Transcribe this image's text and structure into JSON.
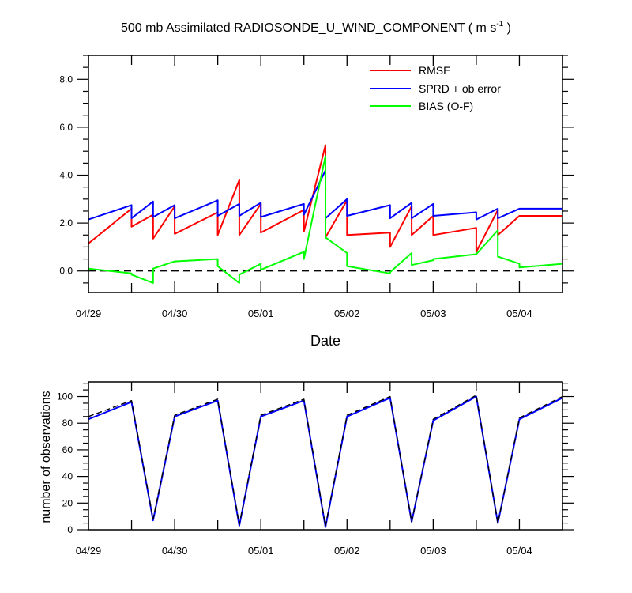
{
  "chart_data": [
    {
      "type": "line",
      "title_main": "500 mb Assimilated RADIOSONDE_U_WIND_COMPONENT ( m s",
      "title_sup": "-1",
      "title_end": " )",
      "xlabel": "Date",
      "ylabel": "",
      "x_unit": "days since 04/29 00Z",
      "xlim": [
        0,
        5.5
      ],
      "ylim": [
        -0.9,
        9.0
      ],
      "grid": false,
      "legend_position": "top-right",
      "y_ticks": [
        0,
        2,
        4,
        6,
        8
      ],
      "y_tick_labels": [
        "0.0",
        "2.0",
        "4.0",
        "6.0",
        "8.0"
      ],
      "x_ticks": [
        0,
        1,
        2,
        3,
        4,
        5
      ],
      "x_tick_labels": [
        "04/29",
        "04/30",
        "05/01",
        "05/02",
        "05/03",
        "05/04"
      ],
      "reference_line": {
        "name": "zero-line",
        "value": 0
      },
      "series": [
        {
          "name": "RMSE",
          "color": "#ff0000",
          "x": [
            0,
            0.5,
            0.5,
            0.75,
            0.75,
            1.0,
            1.0,
            1.5,
            1.5,
            1.75,
            1.75,
            2.0,
            2.0,
            2.5,
            2.5,
            2.75,
            2.75,
            3.0,
            3.0,
            3.5,
            3.5,
            3.75,
            3.75,
            4.0,
            4.0,
            4.5,
            4.5,
            4.75,
            4.75,
            5.0,
            5.0,
            5.5
          ],
          "y": [
            1.15,
            2.6,
            1.85,
            2.35,
            1.35,
            2.7,
            1.55,
            2.45,
            1.5,
            3.8,
            1.5,
            2.8,
            1.6,
            2.55,
            1.65,
            5.25,
            1.4,
            2.95,
            1.5,
            1.6,
            1.0,
            2.7,
            1.5,
            2.3,
            1.5,
            1.8,
            0.8,
            2.55,
            1.5,
            2.3,
            2.3,
            2.3
          ]
        },
        {
          "name": "SPRD + ob error",
          "color": "#0000ff",
          "x": [
            0,
            0.5,
            0.5,
            0.75,
            0.75,
            1.0,
            1.0,
            1.5,
            1.5,
            1.75,
            1.75,
            2.0,
            2.0,
            2.5,
            2.5,
            2.75,
            2.75,
            3.0,
            3.0,
            3.5,
            3.5,
            3.75,
            3.75,
            4.0,
            4.0,
            4.5,
            4.5,
            4.75,
            4.75,
            5.0,
            5.0,
            5.5
          ],
          "y": [
            2.15,
            2.75,
            2.2,
            2.9,
            2.25,
            2.75,
            2.2,
            2.95,
            2.3,
            2.8,
            2.3,
            2.85,
            2.25,
            2.8,
            2.35,
            4.2,
            2.2,
            3.0,
            2.3,
            2.75,
            2.2,
            2.85,
            2.2,
            2.8,
            2.3,
            2.45,
            2.15,
            2.6,
            2.2,
            2.6,
            2.6,
            2.6
          ]
        },
        {
          "name": "BIAS (O-F)",
          "color": "#00ff00",
          "x": [
            0,
            0.5,
            0.5,
            0.75,
            0.75,
            1.0,
            1.0,
            1.5,
            1.5,
            1.75,
            1.75,
            2.0,
            2.0,
            2.5,
            2.5,
            2.75,
            2.75,
            3.0,
            3.0,
            3.5,
            3.5,
            3.75,
            3.75,
            4.0,
            4.0,
            4.5,
            4.5,
            4.75,
            4.75,
            5.0,
            5.0,
            5.5
          ],
          "y": [
            0.1,
            -0.1,
            -0.15,
            -0.5,
            0.1,
            0.4,
            0.4,
            0.5,
            0.2,
            -0.5,
            -0.15,
            0.3,
            0.05,
            0.8,
            0.5,
            4.8,
            1.4,
            0.75,
            0.2,
            -0.1,
            -0.05,
            0.75,
            0.25,
            0.45,
            0.5,
            0.7,
            0.7,
            1.7,
            0.6,
            0.3,
            0.15,
            0.3
          ]
        }
      ]
    },
    {
      "type": "line",
      "xlabel": "",
      "ylabel": "number of observations",
      "x_unit": "days since 04/29 00Z",
      "xlim": [
        0,
        5.5
      ],
      "ylim": [
        0,
        111
      ],
      "grid": false,
      "y_ticks": [
        0,
        20,
        40,
        60,
        80,
        100
      ],
      "y_tick_labels": [
        "0",
        "20",
        "40",
        "60",
        "80",
        "100"
      ],
      "x_ticks": [
        0,
        1,
        2,
        3,
        4,
        5
      ],
      "x_tick_labels": [
        "04/29",
        "04/30",
        "05/01",
        "05/02",
        "05/03",
        "05/04"
      ],
      "series": [
        {
          "name": "observations",
          "color": "#0000ff",
          "style": "solid",
          "x": [
            0,
            0.5,
            0.75,
            1.0,
            1.5,
            1.75,
            2.0,
            2.5,
            2.75,
            3.0,
            3.5,
            3.75,
            4.0,
            4.5,
            4.75,
            5.0,
            5.5
          ],
          "y": [
            83,
            96,
            7,
            85,
            97,
            3,
            85,
            97,
            2,
            85,
            99,
            6,
            82,
            100,
            5,
            83,
            99
          ]
        },
        {
          "name": "observations-dashed",
          "color": "#000000",
          "style": "dashed",
          "x": [
            0,
            0.5,
            0.75,
            1.0,
            1.5,
            1.75,
            2.0,
            2.5,
            2.75,
            3.0,
            3.5,
            3.75,
            4.0,
            4.5,
            4.75,
            5.0,
            5.5
          ],
          "y": [
            85,
            97,
            8,
            86,
            98,
            4,
            86,
            98,
            3,
            86,
            100,
            6,
            83,
            101,
            5,
            84,
            100
          ]
        }
      ]
    }
  ]
}
